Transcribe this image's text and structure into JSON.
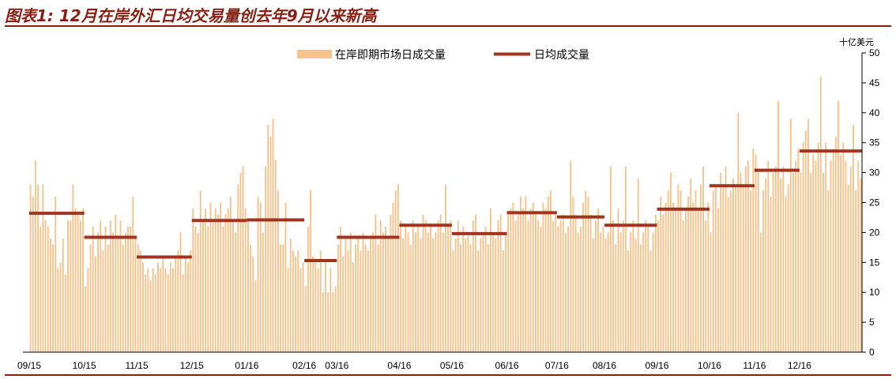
{
  "title": "图表1: 12月在岸外汇日均交易量创去年9月以来新高",
  "chart_data": {
    "type": "bar",
    "unit_label": "十亿美元",
    "y_axis_side": "right",
    "ylim": [
      0,
      50
    ],
    "yticks": [
      0,
      5,
      10,
      15,
      20,
      25,
      30,
      35,
      40,
      45,
      50
    ],
    "grid": false,
    "legend_position": "top-center",
    "colors": {
      "bars": "#f7c28b",
      "average": "#a0341e",
      "axis": "#000000"
    },
    "series": [
      {
        "name": "在岸即期市场日成交量",
        "type": "bar",
        "daily_values": [
          [
            28,
            26,
            32,
            28,
            21,
            28,
            22,
            21,
            19,
            18,
            26,
            14,
            15,
            19,
            13,
            22,
            22,
            28,
            24,
            23,
            22,
            24
          ],
          [
            11,
            14,
            18,
            21,
            16,
            20,
            22,
            17,
            21,
            18,
            22,
            20,
            23,
            19,
            22,
            18,
            20,
            21,
            21,
            26,
            19
          ],
          [
            18,
            17,
            15,
            13,
            14,
            12,
            14,
            13,
            15,
            14,
            16,
            14,
            13,
            15,
            14,
            16,
            17,
            20,
            13,
            16,
            15,
            17
          ],
          [
            24,
            21,
            20,
            27,
            22,
            24,
            21,
            25,
            22,
            24,
            23,
            25,
            21,
            23,
            24,
            26,
            22,
            20,
            28,
            30,
            31,
            24
          ],
          [
            22,
            18,
            16,
            12,
            26,
            25,
            20,
            31,
            38,
            36,
            39,
            32,
            27,
            18,
            18,
            25,
            14,
            19,
            17,
            16,
            17,
            14,
            15
          ],
          [
            11,
            21,
            27,
            16,
            15,
            14,
            17,
            10,
            15,
            10,
            14,
            10,
            11
          ],
          [
            18,
            21,
            16,
            19,
            17,
            20,
            15,
            18,
            19,
            17,
            20,
            18,
            17,
            19,
            20,
            23,
            18,
            22,
            20,
            21,
            19,
            23,
            25,
            27,
            28
          ],
          [
            22,
            19,
            21,
            20,
            18,
            22,
            20,
            21,
            19,
            23,
            22,
            20,
            21,
            19,
            20,
            22,
            23,
            20,
            28,
            21,
            22
          ],
          [
            17,
            19,
            22,
            18,
            21,
            19,
            20,
            18,
            22,
            23,
            17,
            19,
            20,
            21,
            18,
            24,
            20,
            19,
            22,
            23,
            17,
            20
          ],
          [
            23,
            24,
            25,
            22,
            23,
            26,
            24,
            26,
            22,
            24,
            25,
            23,
            22,
            21,
            25,
            24,
            26,
            27,
            22,
            23
          ],
          [
            21,
            22,
            23,
            20,
            21,
            32,
            26,
            23,
            20,
            21,
            25,
            27,
            26,
            23,
            19,
            22,
            24,
            20,
            21
          ],
          [
            19,
            20,
            31,
            22,
            18,
            24,
            20,
            22,
            31,
            17,
            20,
            22,
            19,
            29,
            18,
            20,
            22,
            21,
            17,
            20,
            23
          ],
          [
            22,
            26,
            23,
            25,
            27,
            30,
            25,
            24,
            28,
            27,
            22,
            24,
            26,
            29,
            25,
            27,
            24,
            28,
            31,
            22,
            25
          ],
          [
            20,
            27,
            28,
            24,
            30,
            28,
            31,
            26,
            27,
            29,
            28,
            40,
            30,
            28,
            31,
            32,
            27,
            34
          ],
          [
            33,
            30,
            20,
            27,
            29,
            32,
            26,
            30,
            31,
            42,
            29,
            31,
            26,
            28,
            39,
            30,
            32,
            34
          ],
          [
            30,
            35,
            37,
            39,
            30,
            33,
            32,
            35,
            46,
            30,
            35,
            27,
            32,
            34,
            36,
            42,
            33,
            35,
            32,
            28,
            31,
            38,
            27,
            32,
            29
          ]
        ]
      },
      {
        "name": "日均成交量",
        "type": "step",
        "monthly_values": [
          23.2,
          19.2,
          15.9,
          22.0,
          22.1,
          15.3,
          19.2,
          21.2,
          19.8,
          23.3,
          22.6,
          21.2,
          23.9,
          27.8,
          30.4,
          33.6
        ]
      }
    ],
    "x_tick_labels": [
      "09/15",
      "10/15",
      "11/15",
      "12/15",
      "01/16",
      "02/16",
      "03/16",
      "04/16",
      "05/16",
      "06/16",
      "07/16",
      "08/16",
      "09/16",
      "10/16",
      "11/16",
      "12/16"
    ]
  }
}
